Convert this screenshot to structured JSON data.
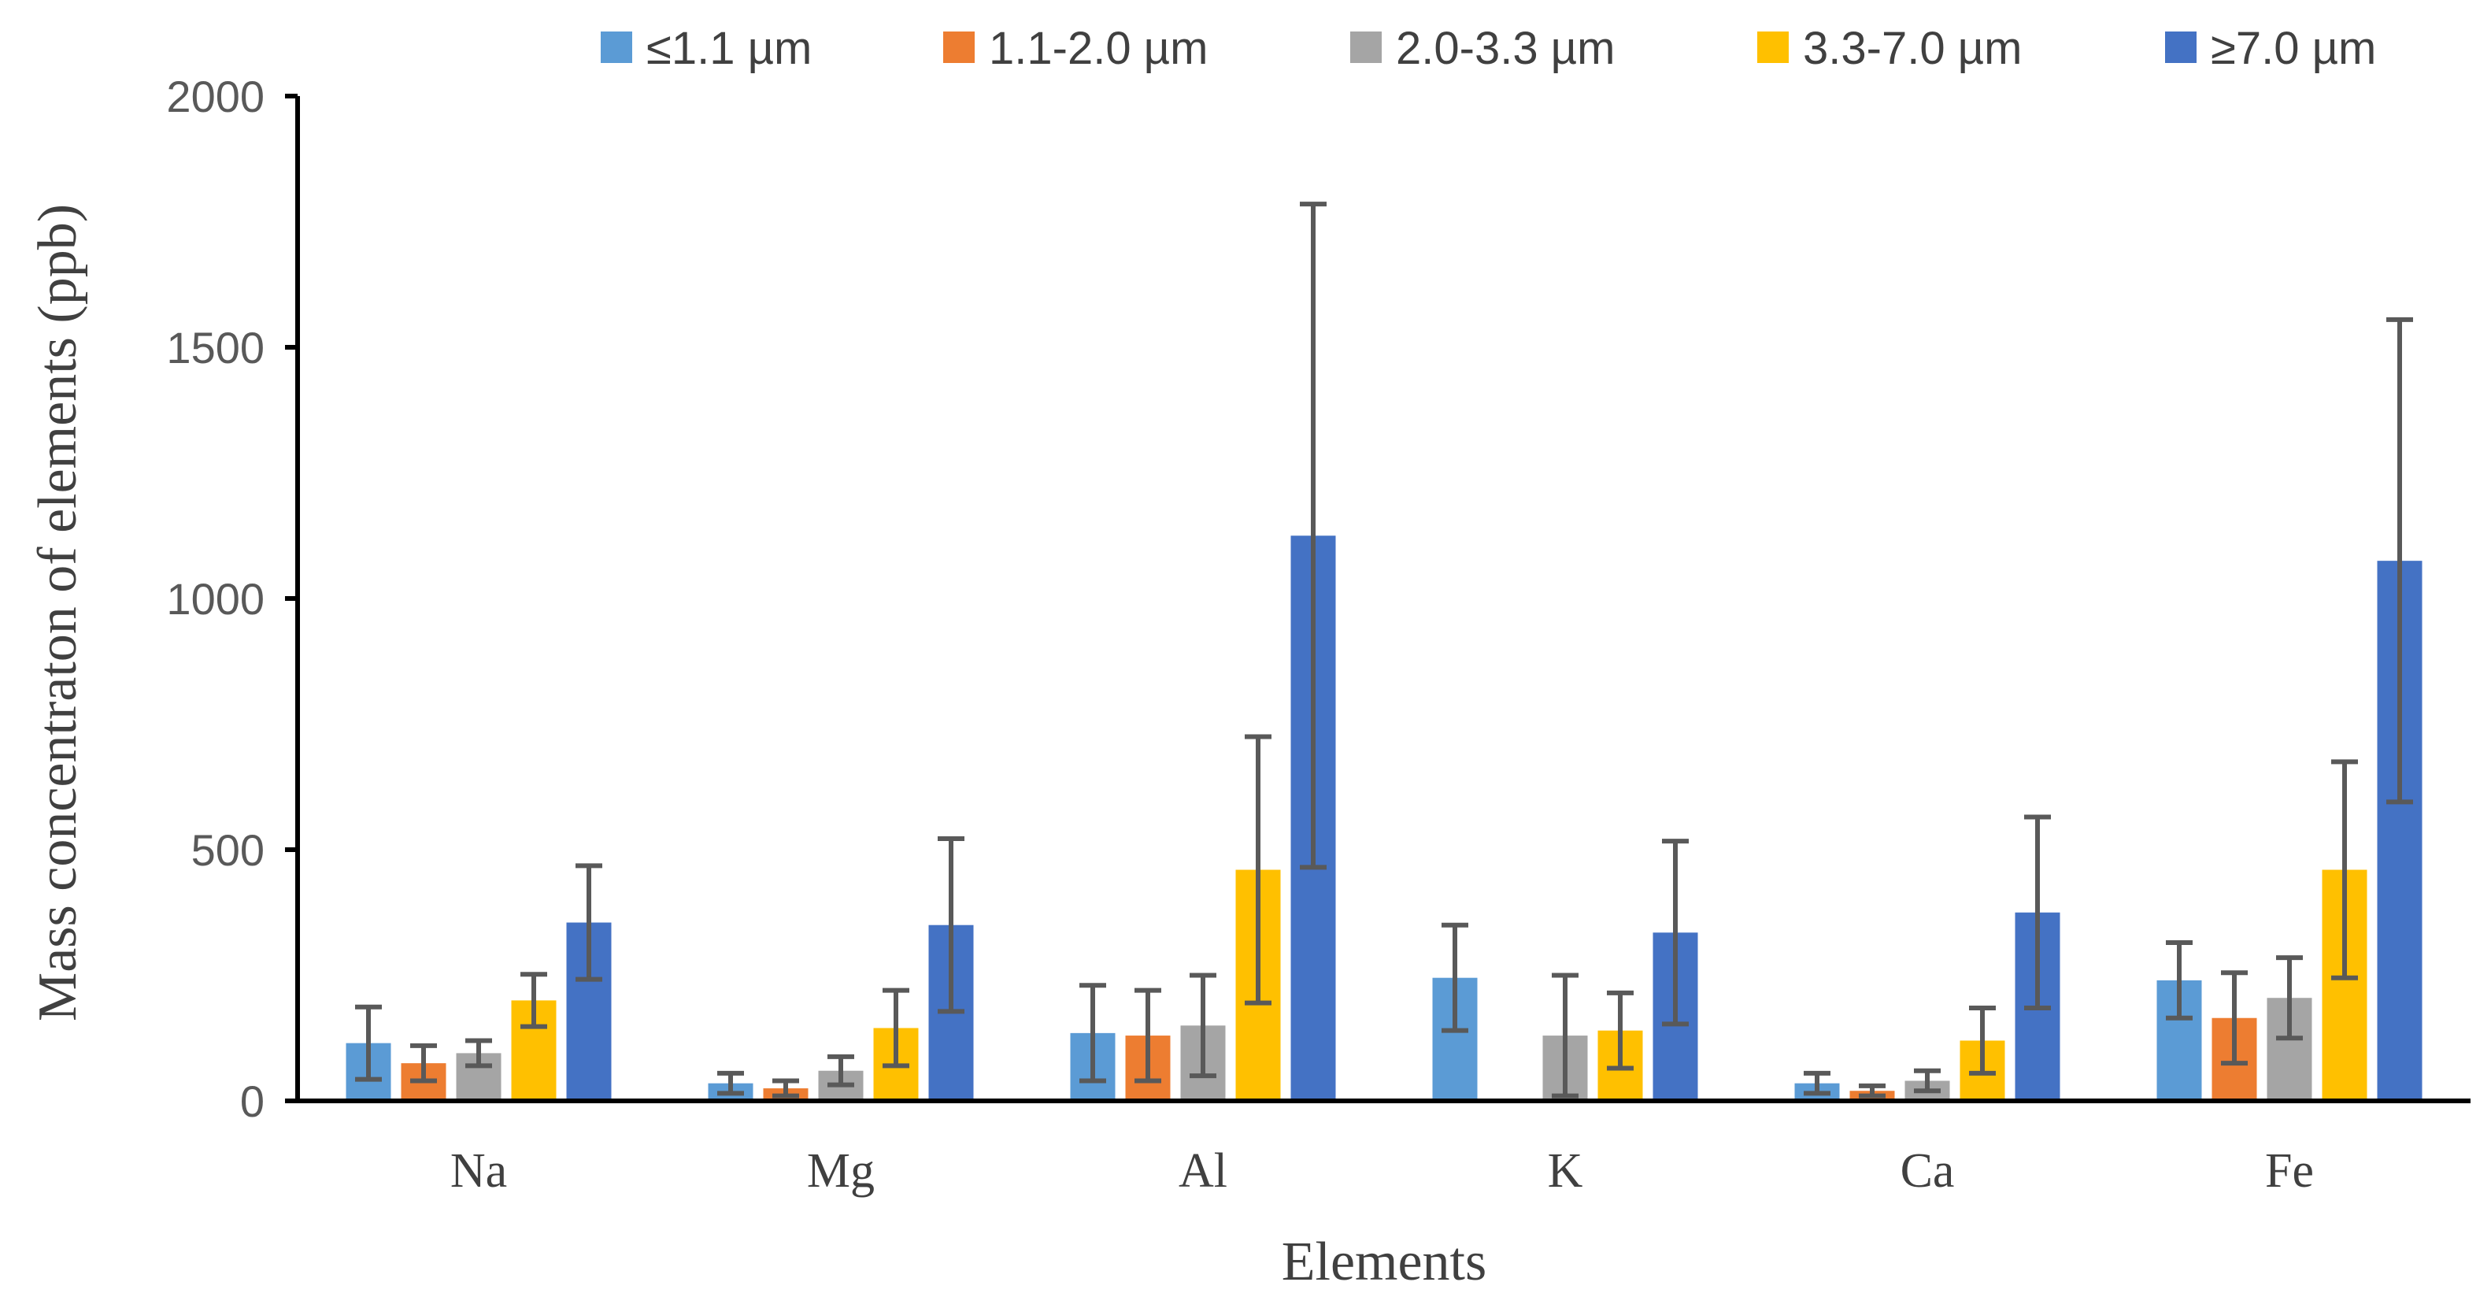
{
  "chart_data": {
    "type": "bar",
    "title": "",
    "xlabel": "Elements",
    "ylabel": "Mass concentraton of elements (ppb)",
    "ylim": [
      0,
      2000
    ],
    "yticks": [
      "0",
      "500",
      "1000",
      "1500",
      "2000"
    ],
    "legend_position": "top",
    "categories": [
      "Na",
      "Mg",
      "Al",
      "K",
      "Ca",
      "Fe"
    ],
    "series": [
      {
        "name": "≤1.1 µm",
        "color": "#5B9BD5",
        "values": [
          115,
          35,
          135,
          245,
          35,
          240
        ],
        "errors": [
          72,
          20,
          95,
          105,
          20,
          75
        ]
      },
      {
        "name": "1.1-2.0 µm",
        "color": "#ED7D31",
        "values": [
          75,
          25,
          130,
          null,
          20,
          165
        ],
        "errors": [
          35,
          15,
          90,
          null,
          10,
          90
        ]
      },
      {
        "name": "2.0-3.3 µm",
        "color": "#A5A5A5",
        "values": [
          95,
          60,
          150,
          130,
          40,
          205
        ],
        "errors": [
          25,
          28,
          100,
          120,
          20,
          80
        ]
      },
      {
        "name": "3.3-7.0 µm",
        "color": "#FFC000",
        "values": [
          200,
          145,
          460,
          140,
          120,
          460
        ],
        "errors": [
          52,
          75,
          265,
          75,
          65,
          215
        ]
      },
      {
        "name": "≥7.0 µm",
        "color": "#4472C4",
        "values": [
          355,
          350,
          1125,
          335,
          375,
          1075
        ],
        "errors": [
          113,
          172,
          660,
          182,
          190,
          480
        ]
      }
    ]
  }
}
